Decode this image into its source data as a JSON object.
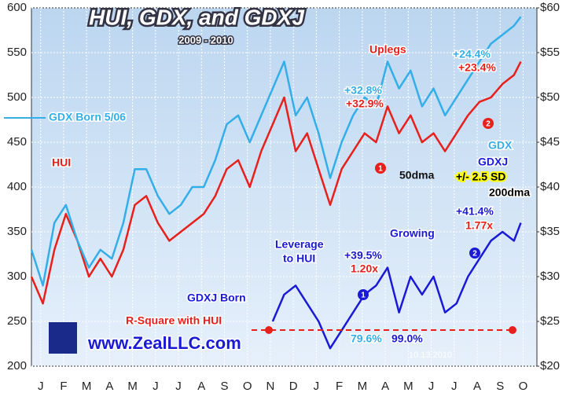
{
  "chart_data": {
    "type": "line",
    "title": "HUI, GDX, and GDXJ",
    "subtitle": "2009 - 2010",
    "x": [
      0,
      0.5,
      1,
      1.5,
      2,
      2.5,
      3,
      3.5,
      4,
      4.5,
      5,
      5.5,
      6,
      6.5,
      7,
      7.5,
      8,
      8.5,
      9,
      9.5,
      10,
      10.5,
      11,
      11.5,
      12,
      12.5,
      13,
      13.5,
      14,
      14.5,
      15,
      15.5,
      16,
      16.5,
      17,
      17.5,
      18,
      18.5,
      19,
      19.5,
      20,
      20.5,
      21,
      21.3
    ],
    "xlim": [
      0,
      22
    ],
    "xticks": [
      {
        "value": 0.4,
        "label": "J"
      },
      {
        "value": 1.4,
        "label": "F"
      },
      {
        "value": 2.4,
        "label": "M"
      },
      {
        "value": 3.4,
        "label": "A"
      },
      {
        "value": 4.4,
        "label": "M"
      },
      {
        "value": 5.4,
        "label": "J"
      },
      {
        "value": 6.4,
        "label": "J"
      },
      {
        "value": 7.4,
        "label": "A"
      },
      {
        "value": 8.4,
        "label": "S"
      },
      {
        "value": 9.4,
        "label": "O"
      },
      {
        "value": 10.4,
        "label": "N"
      },
      {
        "value": 11.4,
        "label": "D"
      },
      {
        "value": 12.4,
        "label": "J"
      },
      {
        "value": 13.4,
        "label": "F"
      },
      {
        "value": 14.4,
        "label": "M"
      },
      {
        "value": 15.4,
        "label": "A"
      },
      {
        "value": 16.4,
        "label": "M"
      },
      {
        "value": 17.4,
        "label": "J"
      },
      {
        "value": 18.4,
        "label": "J"
      },
      {
        "value": 19.4,
        "label": "A"
      },
      {
        "value": 20.4,
        "label": "S"
      },
      {
        "value": 21.4,
        "label": "O"
      }
    ],
    "ylim": [
      200,
      600
    ],
    "yticks": [
      200,
      250,
      300,
      350,
      400,
      450,
      500,
      550,
      600
    ],
    "y2lim": [
      20,
      60
    ],
    "y2ticks": [
      {
        "value": 20,
        "label": "$20"
      },
      {
        "value": 25,
        "label": "$25"
      },
      {
        "value": 30,
        "label": "$30"
      },
      {
        "value": 35,
        "label": "$35"
      },
      {
        "value": 40,
        "label": "$40"
      },
      {
        "value": 45,
        "label": "$45"
      },
      {
        "value": 50,
        "label": "$50"
      },
      {
        "value": 55,
        "label": "$55"
      },
      {
        "value": 60,
        "label": "$60"
      }
    ],
    "grid": true,
    "series": [
      {
        "name": "HUI",
        "color": "#e8201c",
        "values": [
          300,
          270,
          330,
          370,
          340,
          300,
          320,
          300,
          330,
          380,
          390,
          360,
          340,
          350,
          360,
          370,
          390,
          420,
          430,
          400,
          440,
          470,
          500,
          440,
          460,
          420,
          380,
          420,
          440,
          460,
          450,
          490,
          460,
          480,
          450,
          460,
          440,
          460,
          480,
          495,
          500,
          515,
          525,
          540
        ]
      },
      {
        "name": "GDX",
        "color": "#33aee8",
        "axis": "y2",
        "values": [
          33,
          29,
          36,
          38,
          34,
          31,
          33,
          32,
          36,
          42,
          42,
          39,
          37,
          38,
          40,
          40,
          43,
          47,
          48,
          45,
          48,
          51,
          54,
          48,
          50,
          46,
          41,
          45,
          48,
          50,
          49,
          54,
          51,
          53,
          49,
          51,
          48,
          50,
          52,
          54,
          56,
          57,
          58,
          59
        ]
      },
      {
        "name": "GDXJ",
        "color": "#1a1ad6",
        "axis": "y2",
        "values": [
          null,
          null,
          null,
          null,
          null,
          null,
          null,
          null,
          null,
          null,
          null,
          null,
          null,
          null,
          null,
          null,
          null,
          null,
          null,
          null,
          null,
          25,
          28,
          29,
          27,
          25,
          22,
          24,
          26,
          28,
          29,
          31,
          26,
          30,
          28,
          30,
          26,
          27,
          30,
          32,
          34,
          35,
          34,
          36
        ]
      }
    ],
    "annotations": [
      "Uplegs",
      "+24.4%",
      "+23.4%",
      "+32.8%",
      "+32.9%",
      "GDX Born 5/06",
      "50dma",
      "+/- 2.5 SD",
      "200dma",
      "+41.4%",
      "1.77x",
      "Growing",
      "Leverage",
      "to HUI",
      "+39.5%",
      "1.20x",
      "GDXJ Born",
      "R-Square with HUI",
      "79.6%",
      "99.0%",
      "www.ZealLLC.com",
      "10.13.2010",
      "1",
      "2",
      "1",
      "2"
    ]
  }
}
